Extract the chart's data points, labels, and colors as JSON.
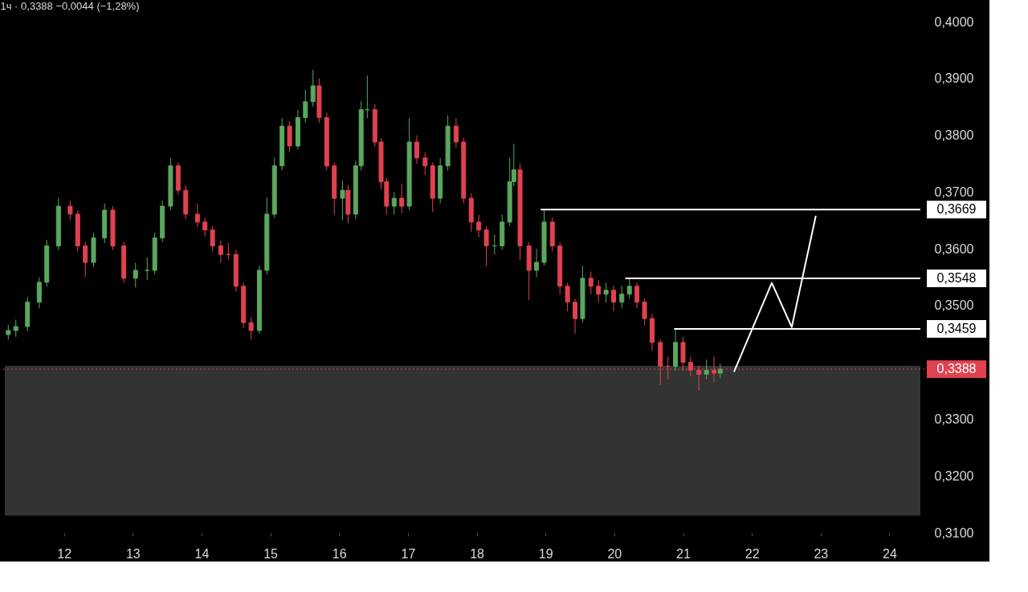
{
  "chart_data": {
    "type": "candlestick",
    "title": "1ч · 0,3388 −0,0044 (−1,28%)",
    "x": [
      11.19,
      11.3,
      11.47,
      11.64,
      11.75,
      11.92,
      12.09,
      12.2,
      12.31,
      12.43,
      12.59,
      12.71,
      12.87,
      13.04,
      13.21,
      13.32,
      13.43,
      13.55,
      13.66,
      13.77,
      13.94,
      14.05,
      14.16,
      14.28,
      14.39,
      14.5,
      14.61,
      14.72,
      14.84,
      14.95,
      15.06,
      15.17,
      15.28,
      15.4,
      15.51,
      15.62,
      15.71,
      15.82,
      15.93,
      16.05,
      16.13,
      16.24,
      16.32,
      16.41,
      16.52,
      16.61,
      16.69,
      16.8,
      16.91,
      17.02,
      17.13,
      17.25,
      17.36,
      17.47,
      17.58,
      17.7,
      17.81,
      17.92,
      18.03,
      18.14,
      18.26,
      18.37,
      18.48,
      18.54,
      18.63,
      18.76,
      18.87,
      18.98,
      19.1,
      19.21,
      19.32,
      19.43,
      19.54,
      19.66,
      19.77,
      19.88,
      19.99,
      20.11,
      20.22,
      20.33,
      20.44,
      20.55,
      20.67,
      20.78,
      20.89,
      21.0,
      21.11,
      21.23,
      21.34,
      21.45,
      21.54
    ],
    "ohlc": [
      [
        0.3449,
        0.3466,
        0.344,
        0.3456
      ],
      [
        0.3456,
        0.3475,
        0.3445,
        0.3463
      ],
      [
        0.3463,
        0.3515,
        0.3455,
        0.3506
      ],
      [
        0.3506,
        0.355,
        0.3495,
        0.3541
      ],
      [
        0.3541,
        0.3615,
        0.3533,
        0.3605
      ],
      [
        0.3605,
        0.369,
        0.3598,
        0.3675
      ],
      [
        0.3675,
        0.3685,
        0.365,
        0.3661
      ],
      [
        0.3661,
        0.3668,
        0.3595,
        0.3605
      ],
      [
        0.3605,
        0.3612,
        0.355,
        0.3576
      ],
      [
        0.3576,
        0.3628,
        0.3568,
        0.3619
      ],
      [
        0.3619,
        0.368,
        0.361,
        0.3668
      ],
      [
        0.3668,
        0.3675,
        0.3598,
        0.3605
      ],
      [
        0.3605,
        0.3612,
        0.354,
        0.3548
      ],
      [
        0.3548,
        0.3575,
        0.3532,
        0.3562
      ],
      [
        0.3562,
        0.3585,
        0.3545,
        0.3562
      ],
      [
        0.3562,
        0.3628,
        0.3555,
        0.3619
      ],
      [
        0.3619,
        0.3685,
        0.3612,
        0.3675
      ],
      [
        0.3675,
        0.376,
        0.3668,
        0.3746
      ],
      [
        0.3746,
        0.3752,
        0.3695,
        0.3703
      ],
      [
        0.3703,
        0.3712,
        0.3652,
        0.3661
      ],
      [
        0.3661,
        0.368,
        0.3638,
        0.3647
      ],
      [
        0.3647,
        0.3655,
        0.3622,
        0.3633
      ],
      [
        0.3633,
        0.364,
        0.3595,
        0.3605
      ],
      [
        0.3605,
        0.3615,
        0.3575,
        0.359
      ],
      [
        0.359,
        0.361,
        0.358,
        0.359
      ],
      [
        0.359,
        0.3598,
        0.3525,
        0.3534
      ],
      [
        0.3534,
        0.354,
        0.346,
        0.347
      ],
      [
        0.347,
        0.348,
        0.344,
        0.3456
      ],
      [
        0.3456,
        0.357,
        0.345,
        0.3562
      ],
      [
        0.3562,
        0.369,
        0.3555,
        0.3661
      ],
      [
        0.3661,
        0.376,
        0.3655,
        0.3746
      ],
      [
        0.3746,
        0.383,
        0.3738,
        0.3816
      ],
      [
        0.3816,
        0.3825,
        0.377,
        0.3781
      ],
      [
        0.3781,
        0.3845,
        0.3775,
        0.3831
      ],
      [
        0.3831,
        0.388,
        0.3822,
        0.3859
      ],
      [
        0.3859,
        0.3915,
        0.385,
        0.3887
      ],
      [
        0.3887,
        0.39,
        0.3822,
        0.3831
      ],
      [
        0.3831,
        0.384,
        0.3738,
        0.3746
      ],
      [
        0.3746,
        0.3752,
        0.366,
        0.3689
      ],
      [
        0.3689,
        0.372,
        0.365,
        0.3703
      ],
      [
        0.3703,
        0.3712,
        0.3645,
        0.3661
      ],
      [
        0.3661,
        0.3755,
        0.3652,
        0.3746
      ],
      [
        0.3746,
        0.386,
        0.3738,
        0.3845
      ],
      [
        0.3845,
        0.3905,
        0.383,
        0.3845
      ],
      [
        0.3845,
        0.3855,
        0.378,
        0.3788
      ],
      [
        0.3788,
        0.3795,
        0.3705,
        0.3718
      ],
      [
        0.3718,
        0.3725,
        0.366,
        0.3675
      ],
      [
        0.3675,
        0.37,
        0.366,
        0.3689
      ],
      [
        0.3689,
        0.3715,
        0.3662,
        0.3675
      ],
      [
        0.3675,
        0.383,
        0.3668,
        0.3788
      ],
      [
        0.3788,
        0.38,
        0.375,
        0.376
      ],
      [
        0.376,
        0.377,
        0.373,
        0.3746
      ],
      [
        0.3746,
        0.3752,
        0.3665,
        0.3689
      ],
      [
        0.3689,
        0.376,
        0.368,
        0.3746
      ],
      [
        0.3746,
        0.3835,
        0.3738,
        0.3816
      ],
      [
        0.3816,
        0.383,
        0.3778,
        0.3788
      ],
      [
        0.3788,
        0.3795,
        0.368,
        0.3689
      ],
      [
        0.3689,
        0.3698,
        0.363,
        0.3647
      ],
      [
        0.3647,
        0.366,
        0.362,
        0.3633
      ],
      [
        0.3633,
        0.364,
        0.357,
        0.3605
      ],
      [
        0.3605,
        0.3625,
        0.359,
        0.3605
      ],
      [
        0.3605,
        0.366,
        0.3598,
        0.3647
      ],
      [
        0.3647,
        0.376,
        0.364,
        0.3718
      ],
      [
        0.3718,
        0.3785,
        0.371,
        0.3739
      ],
      [
        0.3739,
        0.375,
        0.358,
        0.3605
      ],
      [
        0.3605,
        0.3612,
        0.351,
        0.3562
      ],
      [
        0.3562,
        0.36,
        0.355,
        0.3576
      ],
      [
        0.3576,
        0.3669,
        0.357,
        0.3647
      ],
      [
        0.3647,
        0.3655,
        0.3595,
        0.3605
      ],
      [
        0.3605,
        0.3612,
        0.352,
        0.3534
      ],
      [
        0.3534,
        0.354,
        0.349,
        0.3506
      ],
      [
        0.3506,
        0.3512,
        0.345,
        0.3477
      ],
      [
        0.3477,
        0.357,
        0.347,
        0.3548
      ],
      [
        0.3548,
        0.356,
        0.352,
        0.3534
      ],
      [
        0.3534,
        0.3545,
        0.3505,
        0.352
      ],
      [
        0.352,
        0.354,
        0.3505,
        0.3527
      ],
      [
        0.3527,
        0.3535,
        0.349,
        0.3506
      ],
      [
        0.3506,
        0.3535,
        0.3495,
        0.352
      ],
      [
        0.352,
        0.3548,
        0.3512,
        0.3534
      ],
      [
        0.3534,
        0.354,
        0.3495,
        0.3506
      ],
      [
        0.3506,
        0.3512,
        0.3465,
        0.3477
      ],
      [
        0.3477,
        0.3485,
        0.342,
        0.3435
      ],
      [
        0.3435,
        0.344,
        0.336,
        0.3393
      ],
      [
        0.3393,
        0.341,
        0.337,
        0.3393
      ],
      [
        0.3393,
        0.3459,
        0.3385,
        0.3435
      ],
      [
        0.3435,
        0.3445,
        0.3385,
        0.34
      ],
      [
        0.34,
        0.341,
        0.3375,
        0.3386
      ],
      [
        0.3386,
        0.3395,
        0.335,
        0.3379
      ],
      [
        0.3379,
        0.3405,
        0.337,
        0.3386
      ],
      [
        0.3386,
        0.341,
        0.3365,
        0.3381
      ],
      [
        0.3381,
        0.3398,
        0.3372,
        0.3388
      ]
    ],
    "colors": [
      "#5aa85e",
      "#5aa85e",
      "#5aa85e",
      "#5aa85e",
      "#5aa85e",
      "#5aa85e",
      "#e0424f",
      "#e0424f",
      "#e0424f",
      "#5aa85e",
      "#5aa85e",
      "#e0424f",
      "#e0424f",
      "#5aa85e",
      "#5aa85e",
      "#5aa85e",
      "#5aa85e",
      "#5aa85e",
      "#e0424f",
      "#e0424f",
      "#e0424f",
      "#e0424f",
      "#e0424f",
      "#e0424f",
      "#e0424f",
      "#e0424f",
      "#e0424f",
      "#e0424f",
      "#5aa85e",
      "#5aa85e",
      "#5aa85e",
      "#5aa85e",
      "#e0424f",
      "#5aa85e",
      "#5aa85e",
      "#5aa85e",
      "#e0424f",
      "#e0424f",
      "#e0424f",
      "#5aa85e",
      "#e0424f",
      "#5aa85e",
      "#5aa85e",
      "#5aa85e",
      "#e0424f",
      "#e0424f",
      "#e0424f",
      "#5aa85e",
      "#e0424f",
      "#5aa85e",
      "#e0424f",
      "#e0424f",
      "#e0424f",
      "#5aa85e",
      "#5aa85e",
      "#e0424f",
      "#e0424f",
      "#e0424f",
      "#e0424f",
      "#e0424f",
      "#5aa85e",
      "#5aa85e",
      "#5aa85e",
      "#5aa85e",
      "#e0424f",
      "#e0424f",
      "#5aa85e",
      "#5aa85e",
      "#e0424f",
      "#e0424f",
      "#e0424f",
      "#e0424f",
      "#5aa85e",
      "#e0424f",
      "#e0424f",
      "#5aa85e",
      "#e0424f",
      "#5aa85e",
      "#5aa85e",
      "#e0424f",
      "#e0424f",
      "#e0424f",
      "#e0424f",
      "#e0424f",
      "#5aa85e",
      "#e0424f",
      "#e0424f",
      "#e0424f",
      "#5aa85e",
      "#e0424f",
      "#5aa85e"
    ],
    "series": [
      {
        "type": "line",
        "color": "#ffffff",
        "x": [
          18.93,
          24.45
        ],
        "values": [
          0.3669,
          0.3669
        ],
        "value_labels": [
          null,
          "0,3669"
        ]
      },
      {
        "type": "line",
        "color": "#ffffff",
        "x": [
          20.16,
          24.45
        ],
        "values": [
          0.3548,
          0.3548
        ],
        "value_labels": [
          null,
          "0,3548"
        ]
      },
      {
        "type": "line",
        "color": "#ffffff",
        "x": [
          20.87,
          24.45
        ],
        "values": [
          0.3459,
          0.3459
        ],
        "value_labels": [
          null,
          "0,3459"
        ]
      },
      {
        "type": "line",
        "color": "#ffffff",
        "x": [
          21.74,
          22.29,
          22.58,
          22.93
        ],
        "values": [
          0.3383,
          0.354,
          0.3462,
          0.3658
        ]
      }
    ],
    "ref_lines": [
      {
        "axis": "y",
        "value": 0.3388,
        "label": "0,3388",
        "color": "#e0424f",
        "line_style": "dotted"
      }
    ],
    "bands": [
      {
        "axis": "y",
        "from": 0.313,
        "to": 0.3394,
        "color": "#333333"
      }
    ],
    "xlim": [
      11.14,
      24.45
    ],
    "xticks": [
      12,
      13,
      14,
      15,
      16,
      17,
      18,
      19,
      20,
      21,
      22,
      23,
      24
    ],
    "ylim": [
      0.31,
      0.4
    ],
    "yticks": [
      {
        "value": 0.31,
        "label": "0,3100"
      },
      {
        "value": 0.32,
        "label": "0,3200"
      },
      {
        "value": 0.33,
        "label": "0,3300"
      },
      {
        "value": 0.35,
        "label": "0,3500"
      },
      {
        "value": 0.36,
        "label": "0,3600"
      },
      {
        "value": 0.37,
        "label": "0,3700"
      },
      {
        "value": 0.38,
        "label": "0,3800"
      },
      {
        "value": 0.39,
        "label": "0,3900"
      },
      {
        "value": 0.4,
        "label": "0,4000"
      }
    ],
    "grid": false,
    "marker": "none"
  }
}
